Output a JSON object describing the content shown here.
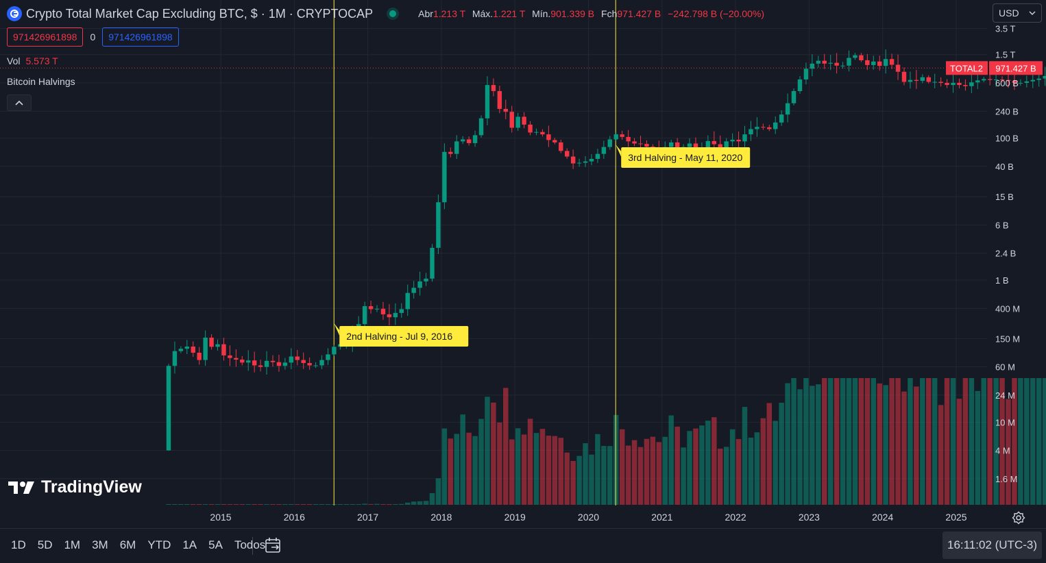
{
  "header": {
    "title": "Crypto Total Market Cap Excluding BTC, $ · 1M · CRYPTOCAP",
    "open_label": "Abr",
    "open": "1.213 T",
    "high_label": "Máx.",
    "high": "1.221 T",
    "low_label": "Mín.",
    "low": "901.339 B",
    "close_label": "Fch",
    "close": "971.427 B",
    "change": "−242.798 B (−20.00%)"
  },
  "inputs": {
    "value_red": "971426961898",
    "zero": "0",
    "value_blue": "971426961898"
  },
  "volume": {
    "label": "Vol",
    "value": "5.573 T"
  },
  "indicator": {
    "name": "Bitcoin Halvings"
  },
  "currency": {
    "selected": "USD"
  },
  "price_tag": {
    "symbol": "TOTAL2",
    "value": "971.427 B"
  },
  "brand": {
    "name": "TradingView"
  },
  "toolbar": {
    "ranges": [
      "1D",
      "5D",
      "1M",
      "3M",
      "6M",
      "YTD",
      "1A",
      "5A",
      "Todos"
    ],
    "clock": "16:11:02 (UTC-3)"
  },
  "colors": {
    "up": "#089981",
    "down": "#f23645",
    "halving": "#ffeb3b",
    "background": "#161a25"
  },
  "chart_data": {
    "type": "candlestick",
    "scale": "log",
    "y_tick_labels": [
      "3.5 T",
      "1.5 T",
      "600 B",
      "240 B",
      "100 B",
      "40 B",
      "15 B",
      "6 B",
      "2.4 B",
      "1 B",
      "400 M",
      "150 M",
      "60 M",
      "24 M",
      "10 M",
      "4 M",
      "1.6 M"
    ],
    "y_tick_values": [
      3500000000000.0,
      1500000000000.0,
      600000000000.0,
      240000000000.0,
      100000000000.0,
      40000000000.0,
      15000000000.0,
      6000000000.0,
      2400000000.0,
      1000000000.0,
      400000000.0,
      150000000.0,
      60000000.0,
      24000000.0,
      10000000.0,
      4000000.0,
      1600000.0
    ],
    "x_tick_labels": [
      "2015",
      "2016",
      "2017",
      "2018",
      "2019",
      "2020",
      "2021",
      "2022",
      "2023",
      "2024",
      "2025"
    ],
    "x_tick_years": [
      2015,
      2016,
      2017,
      2018,
      2019,
      2020,
      2021,
      2022,
      2023,
      2024,
      2025
    ],
    "annotations": [
      {
        "label": "2nd Halving - Jul 9, 2016",
        "date": 2016.54
      },
      {
        "label": "3rd Halving - May 11, 2020",
        "date": 2020.37
      }
    ],
    "last_close": 971426961898,
    "monthly_close": [
      62000000.0,
      100000000.0,
      108000000.0,
      116000000.0,
      95000000.0,
      75000000.0,
      155000000.0,
      115000000.0,
      125000000.0,
      87000000.0,
      80000000.0,
      76000000.0,
      69000000.0,
      74000000.0,
      63000000.0,
      60000000.0,
      73000000.0,
      70000000.0,
      62000000.0,
      69000000.0,
      84000000.0,
      75000000.0,
      68000000.0,
      63000000.0,
      63000000.0,
      75000000.0,
      90000000.0,
      115000000.0,
      125000000.0,
      127000000.0,
      165000000.0,
      240000000.0,
      430000000.0,
      390000000.0,
      395000000.0,
      330000000.0,
      300000000.0,
      345000000.0,
      390000000.0,
      660000000.0,
      780000000.0,
      960000000.0,
      1050000000.0,
      2850000000.0,
      12500000000.0,
      64000000000.0,
      60000000000.0,
      90000000000.0,
      96000000000.0,
      85000000000.0,
      110000000000.0,
      190000000000.0,
      560000000000.0,
      460000000000.0,
      258000000000.0,
      235000000000.0,
      140000000000.0,
      200000000000.0,
      155000000000.0,
      120000000000.0,
      122000000000.0,
      113000000000.0,
      94000000000.0,
      87000000000.0,
      66000000000.0,
      55000000000.0,
      44000000000.0,
      45000000000.0,
      47000000000.0,
      51000000000.0,
      60000000000.0,
      75000000000.0,
      96000000000.0,
      113000000000.0,
      104000000000.0,
      90000000000.0,
      84000000000.0,
      83000000000.0,
      76000000000.0,
      71000000000.0,
      68000000000.0,
      75000000000.0,
      87000000000.0,
      68000000000.0,
      75000000000.0,
      84000000000.0,
      70000000000.0,
      74000000000.0,
      91000000000.0,
      82000000000.0,
      70000000000.0,
      90000000000.0,
      95000000000.0,
      90000000000.0,
      113000000000.0,
      134000000000.0,
      144000000000.0,
      142000000000.0,
      134000000000.0,
      166000000000.0,
      215000000000.0,
      310000000000.0,
      460000000000.0,
      670000000000.0,
      950000000000.0,
      1120000000000.0,
      1230000000000.0,
      1120000000000.0,
      1150000000000.0,
      1050000000000.0,
      1050000000000.0,
      1350000000000.0,
      1470000000000.0,
      1250000000000.0,
      1070000000000.0,
      1200000000000.0,
      1040000000000.0,
      1300000000000.0,
      1080000000000.0,
      860000000000.0,
      620000000000.0,
      660000000000.0,
      640000000000.0,
      720000000000.0,
      620000000000.0,
      620000000000.0,
      600000000000.0,
      560000000000.0,
      600000000000.0,
      560000000000.0,
      540000000000.0,
      610000000000.0,
      650000000000.0,
      680000000000.0,
      660000000000.0,
      670000000000.0,
      660000000000.0,
      640000000000.0,
      600000000000.0,
      600000000000.0,
      630000000000.0,
      660000000000.0,
      690000000000.0,
      750000000000.0,
      820000000000.0,
      910000000000.0,
      880000000000.0,
      1050000000000.0,
      1240000000000.0,
      1230000000000.0,
      971000000000.0
    ]
  }
}
